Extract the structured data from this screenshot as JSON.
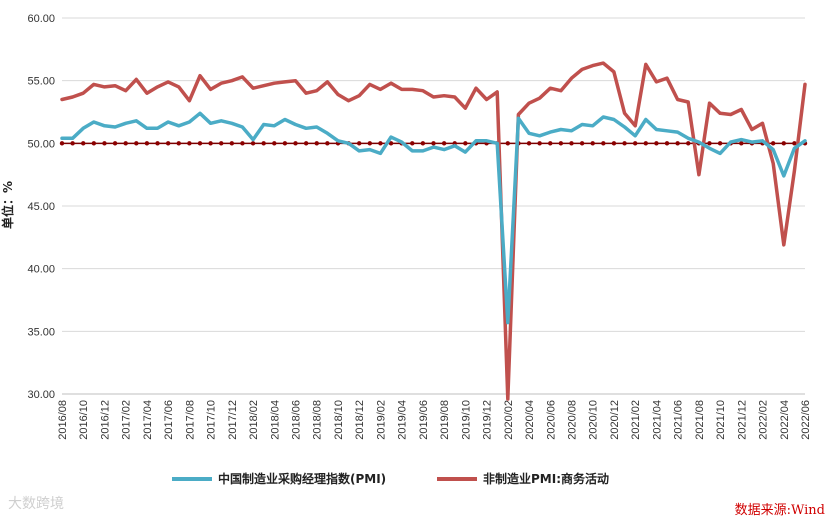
{
  "watermark": "大数跨境",
  "source": "数据来源:Wind",
  "chart_data": {
    "type": "line",
    "ylabel": "单位：%",
    "ylim": [
      30,
      60
    ],
    "yticks": [
      "30.00",
      "35.00",
      "40.00",
      "45.00",
      "50.00",
      "55.00",
      "60.00"
    ],
    "reference_line": 50,
    "x": [
      "2016/08",
      "2016/09",
      "2016/10",
      "2016/11",
      "2016/12",
      "2017/01",
      "2017/02",
      "2017/03",
      "2017/04",
      "2017/05",
      "2017/06",
      "2017/07",
      "2017/08",
      "2017/09",
      "2017/10",
      "2017/11",
      "2017/12",
      "2018/01",
      "2018/02",
      "2018/03",
      "2018/04",
      "2018/05",
      "2018/06",
      "2018/07",
      "2018/08",
      "2018/09",
      "2018/10",
      "2018/11",
      "2018/12",
      "2019/01",
      "2019/02",
      "2019/03",
      "2019/04",
      "2019/05",
      "2019/06",
      "2019/07",
      "2019/08",
      "2019/09",
      "2019/10",
      "2019/11",
      "2019/12",
      "2020/01",
      "2020/02",
      "2020/03",
      "2020/04",
      "2020/05",
      "2020/06",
      "2020/07",
      "2020/08",
      "2020/09",
      "2020/10",
      "2020/11",
      "2020/12",
      "2021/01",
      "2021/02",
      "2021/03",
      "2021/04",
      "2021/05",
      "2021/06",
      "2021/07",
      "2021/08",
      "2021/09",
      "2021/10",
      "2021/11",
      "2021/12",
      "2022/01",
      "2022/02",
      "2022/03",
      "2022/04",
      "2022/05",
      "2022/06"
    ],
    "xtick_labels": [
      "2016/08",
      "2016/10",
      "2016/12",
      "2017/02",
      "2017/04",
      "2017/06",
      "2017/08",
      "2017/10",
      "2017/12",
      "2018/02",
      "2018/04",
      "2018/06",
      "2018/08",
      "2018/10",
      "2018/12",
      "2019/02",
      "2019/04",
      "2019/06",
      "2019/08",
      "2019/10",
      "2019/12",
      "2020/02",
      "2020/04",
      "2020/06",
      "2020/08",
      "2020/10",
      "2020/12",
      "2021/02",
      "2021/04",
      "2021/06",
      "2021/08",
      "2021/10",
      "2021/12",
      "2022/02",
      "2022/04",
      "2022/06"
    ],
    "legend_position": "bottom",
    "grid": true,
    "series": [
      {
        "name": "中国制造业采购经理指数(PMI)",
        "color": "#4bacc6",
        "values": [
          50.4,
          50.4,
          51.2,
          51.7,
          51.4,
          51.3,
          51.6,
          51.8,
          51.2,
          51.2,
          51.7,
          51.4,
          51.7,
          52.4,
          51.6,
          51.8,
          51.6,
          51.3,
          50.3,
          51.5,
          51.4,
          51.9,
          51.5,
          51.2,
          51.3,
          50.8,
          50.2,
          50.0,
          49.4,
          49.5,
          49.2,
          50.5,
          50.1,
          49.4,
          49.4,
          49.7,
          49.5,
          49.8,
          49.3,
          50.2,
          50.2,
          50.0,
          35.7,
          52.0,
          50.8,
          50.6,
          50.9,
          51.1,
          51.0,
          51.5,
          51.4,
          52.1,
          51.9,
          51.3,
          50.6,
          51.9,
          51.1,
          51.0,
          50.9,
          50.4,
          50.1,
          49.6,
          49.2,
          50.1,
          50.3,
          50.1,
          50.2,
          49.5,
          47.4,
          49.6,
          50.2
        ]
      },
      {
        "name": "非制造业PMI:商务活动",
        "color": "#c0504d",
        "values": [
          53.5,
          53.7,
          54.0,
          54.7,
          54.5,
          54.6,
          54.2,
          55.1,
          54.0,
          54.5,
          54.9,
          54.5,
          53.4,
          55.4,
          54.3,
          54.8,
          55.0,
          55.3,
          54.4,
          54.6,
          54.8,
          54.9,
          55.0,
          54.0,
          54.2,
          54.9,
          53.9,
          53.4,
          53.8,
          54.7,
          54.3,
          54.8,
          54.3,
          54.3,
          54.2,
          53.7,
          53.8,
          53.7,
          52.8,
          54.4,
          53.5,
          54.1,
          29.6,
          52.3,
          53.2,
          53.6,
          54.4,
          54.2,
          55.2,
          55.9,
          56.2,
          56.4,
          55.7,
          52.4,
          51.4,
          56.3,
          54.9,
          55.2,
          53.5,
          53.3,
          47.5,
          53.2,
          52.4,
          52.3,
          52.7,
          51.1,
          51.6,
          48.4,
          41.9,
          47.8,
          54.7
        ]
      }
    ]
  }
}
